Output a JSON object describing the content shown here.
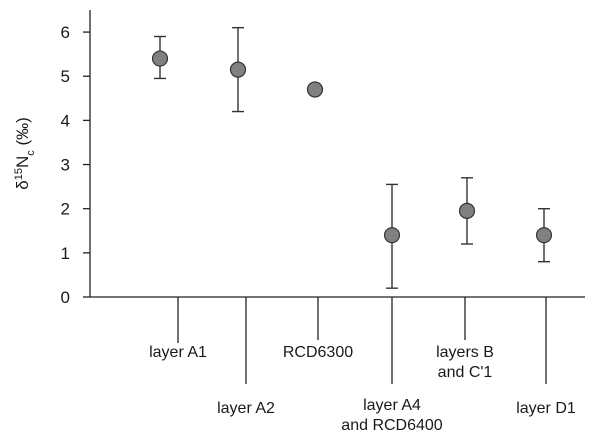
{
  "chart_data": {
    "type": "scatter",
    "title": "",
    "ylabel": "δ15Nc (‰)",
    "ylabel_parts": {
      "delta": "δ",
      "sup": "15",
      "main": "N",
      "sub": "c",
      "unit": " (‰)"
    },
    "ylim": [
      0,
      6.5
    ],
    "yticks": [
      0,
      1,
      2,
      3,
      4,
      5,
      6
    ],
    "grid": false,
    "categories": [
      {
        "lines": [
          "layer A1"
        ]
      },
      {
        "lines": [
          "layer A2"
        ]
      },
      {
        "lines": [
          "RCD6300"
        ]
      },
      {
        "lines": [
          "layer A4",
          "and RCD6400"
        ]
      },
      {
        "lines": [
          "layers B",
          "and C'1"
        ]
      },
      {
        "lines": [
          "layer D1"
        ]
      }
    ],
    "series": [
      {
        "values": [
          5.4,
          5.15,
          4.7,
          1.4,
          1.95,
          1.4
        ],
        "error_low": [
          4.95,
          4.2,
          null,
          0.2,
          1.2,
          0.8
        ],
        "error_high": [
          5.9,
          6.1,
          null,
          2.55,
          2.7,
          2.0
        ]
      }
    ],
    "marker_color": "#808080",
    "marker_edge": "#333333"
  }
}
